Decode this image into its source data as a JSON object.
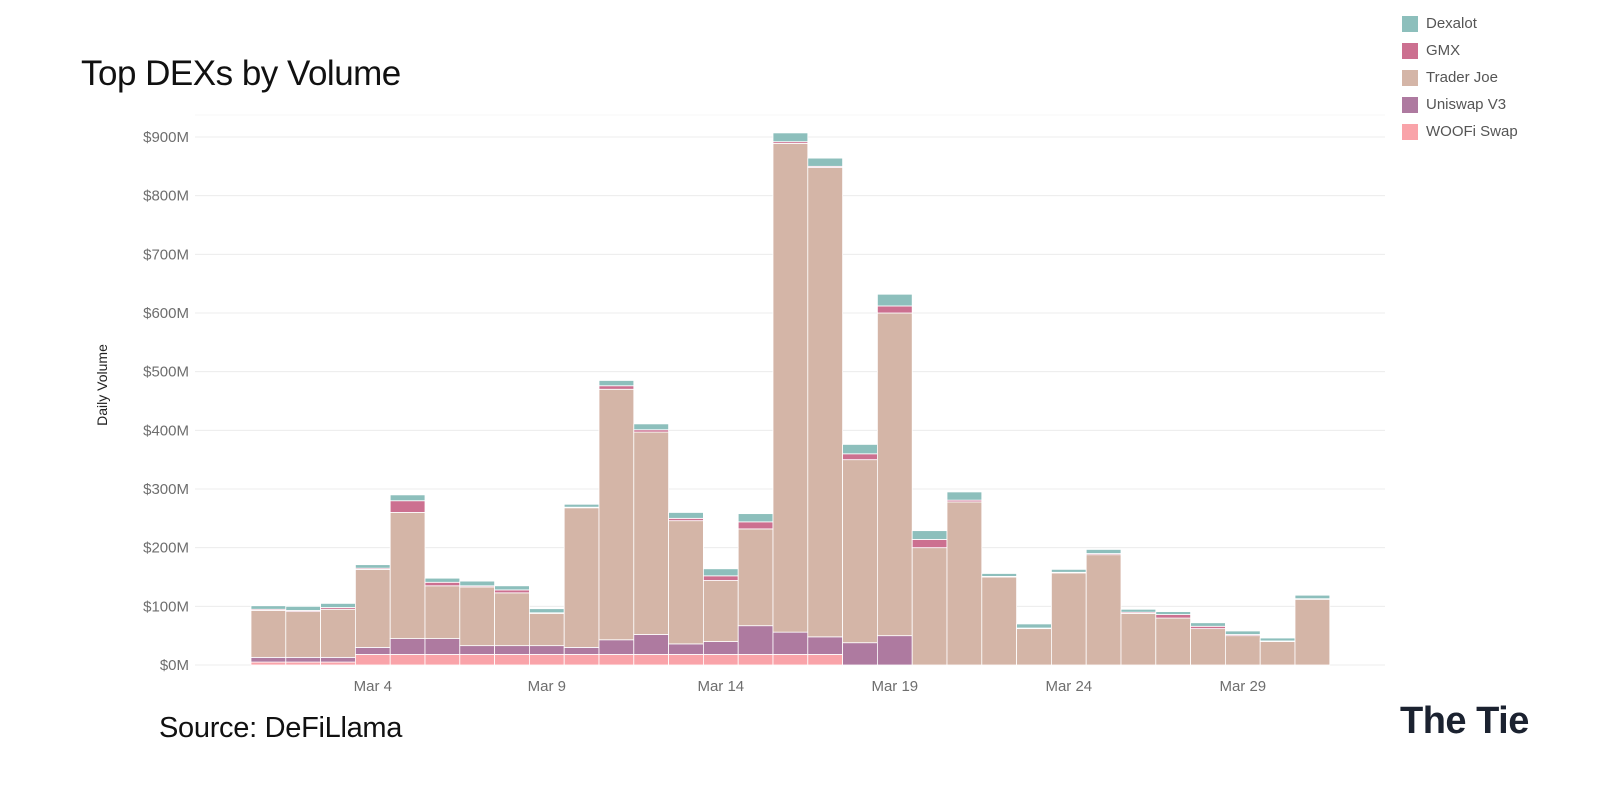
{
  "title": "Top DEXs by Volume",
  "source": "Source: DeFiLlama",
  "brand": "The Tie",
  "chart_data": {
    "type": "bar",
    "stacked": true,
    "title": "Top DEXs by Volume",
    "ylabel": "Daily Volume",
    "xlabel": "",
    "ylim": [
      0,
      900
    ],
    "unit": "$M",
    "ytick_labels": [
      "$0M",
      "$100M",
      "$200M",
      "$300M",
      "$400M",
      "$500M",
      "$600M",
      "$700M",
      "$800M",
      "$900M"
    ],
    "ytick_values": [
      0,
      100,
      200,
      300,
      400,
      500,
      600,
      700,
      800,
      900
    ],
    "xtick_labels": [
      {
        "label": "Mar 4",
        "index": 3
      },
      {
        "label": "Mar 9",
        "index": 8
      },
      {
        "label": "Mar 14",
        "index": 13
      },
      {
        "label": "Mar 19",
        "index": 18
      },
      {
        "label": "Mar 24",
        "index": 23
      },
      {
        "label": "Mar 29",
        "index": 28
      }
    ],
    "grid": true,
    "legend_position": "top-right",
    "categories": [
      "Mar 1",
      "Mar 2",
      "Mar 3",
      "Mar 4",
      "Mar 5",
      "Mar 6",
      "Mar 7",
      "Mar 8",
      "Mar 9",
      "Mar 10",
      "Mar 11",
      "Mar 12",
      "Mar 13",
      "Mar 14",
      "Mar 15",
      "Mar 16",
      "Mar 17",
      "Mar 18",
      "Mar 19",
      "Mar 20",
      "Mar 21",
      "Mar 22",
      "Mar 23",
      "Mar 24",
      "Mar 25",
      "Mar 26",
      "Mar 27",
      "Mar 28",
      "Mar 29",
      "Mar 30",
      "Mar 31",
      "Apr 1"
    ],
    "series": [
      {
        "name": "WOOFi Swap",
        "color": "#f9a3a9",
        "values": [
          5,
          5,
          5,
          18,
          18,
          18,
          18,
          18,
          18,
          18,
          18,
          18,
          18,
          18,
          18,
          18,
          18,
          0,
          0,
          0,
          0,
          0,
          0,
          0,
          0,
          0,
          0,
          0,
          0,
          0,
          0,
          0
        ]
      },
      {
        "name": "Uniswap V3",
        "color": "#ae7aa0",
        "values": [
          8,
          8,
          8,
          12,
          27,
          27,
          15,
          15,
          15,
          12,
          25,
          34,
          18,
          22,
          49,
          38,
          30,
          38,
          50,
          0,
          0,
          0,
          0,
          0,
          0,
          0,
          0,
          0,
          0,
          0,
          0,
          0
        ]
      },
      {
        "name": "Trader Joe",
        "color": "#d4b5a7",
        "values": [
          80,
          78,
          82,
          133,
          215,
          90,
          100,
          90,
          55,
          238,
          427,
          345,
          210,
          104,
          165,
          833,
          800,
          312,
          550,
          200,
          278,
          150,
          62,
          157,
          188,
          88,
          80,
          62,
          50,
          40,
          112,
          0
        ]
      },
      {
        "name": "GMX",
        "color": "#cc7090",
        "values": [
          2,
          2,
          3,
          2,
          20,
          6,
          2,
          5,
          1,
          1,
          6,
          4,
          4,
          8,
          12,
          3,
          2,
          10,
          12,
          14,
          3,
          1,
          1,
          1,
          2,
          2,
          6,
          4,
          2,
          1,
          1,
          0
        ]
      },
      {
        "name": "Dexalot",
        "color": "#8dbfbc",
        "values": [
          6,
          7,
          7,
          6,
          10,
          7,
          8,
          7,
          7,
          5,
          9,
          10,
          10,
          12,
          14,
          15,
          14,
          16,
          20,
          15,
          14,
          5,
          7,
          5,
          7,
          5,
          5,
          6,
          6,
          5,
          6,
          0
        ]
      }
    ]
  },
  "legend": [
    {
      "label": "Dexalot",
      "color": "#8dbfbc"
    },
    {
      "label": "GMX",
      "color": "#cc7090"
    },
    {
      "label": "Trader Joe",
      "color": "#d4b5a7"
    },
    {
      "label": "Uniswap V3",
      "color": "#ae7aa0"
    },
    {
      "label": "WOOFi Swap",
      "color": "#f9a3a9"
    }
  ]
}
